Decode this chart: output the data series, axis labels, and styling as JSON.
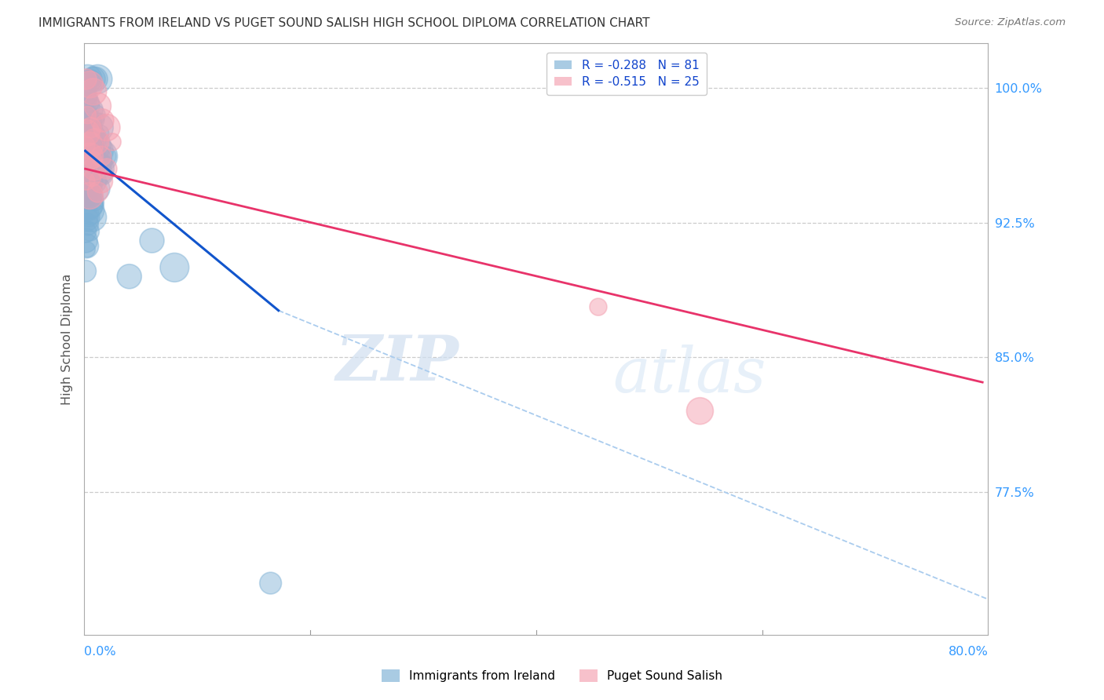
{
  "title": "IMMIGRANTS FROM IRELAND VS PUGET SOUND SALISH HIGH SCHOOL DIPLOMA CORRELATION CHART",
  "source": "Source: ZipAtlas.com",
  "ylabel": "High School Diploma",
  "ytick_values": [
    1.0,
    0.925,
    0.85,
    0.775
  ],
  "ytick_labels": [
    "100.0%",
    "92.5%",
    "85.0%",
    "77.5%"
  ],
  "xmin": 0.0,
  "xmax": 0.8,
  "ymin": 0.695,
  "ymax": 1.025,
  "ireland_color": "#7BAFD4",
  "salish_color": "#F4A0B0",
  "ireland_line_x": [
    0.001,
    0.172
  ],
  "ireland_line_y": [
    0.965,
    0.876
  ],
  "salish_line_x": [
    0.001,
    0.795
  ],
  "salish_line_y": [
    0.955,
    0.836
  ],
  "dashed_line_x": [
    0.172,
    0.8
  ],
  "dashed_line_y": [
    0.876,
    0.715
  ],
  "ireland_scatter_x": [
    0.003,
    0.006,
    0.008,
    0.01,
    0.012,
    0.002,
    0.004,
    0.005,
    0.007,
    0.009,
    0.011,
    0.013,
    0.015,
    0.001,
    0.003,
    0.005,
    0.007,
    0.009,
    0.011,
    0.013,
    0.015,
    0.018,
    0.002,
    0.004,
    0.006,
    0.008,
    0.01,
    0.013,
    0.016,
    0.001,
    0.003,
    0.005,
    0.007,
    0.009,
    0.012,
    0.001,
    0.003,
    0.005,
    0.008,
    0.01,
    0.001,
    0.003,
    0.005,
    0.007,
    0.001,
    0.003,
    0.005,
    0.001,
    0.003,
    0.002,
    0.004,
    0.001,
    0.002,
    0.003,
    0.001,
    0.002,
    0.001,
    0.001,
    0.001,
    0.02,
    0.04,
    0.06,
    0.08,
    0.001,
    0.003,
    0.006,
    0.009,
    0.012,
    0.001,
    0.002,
    0.004,
    0.001,
    0.002,
    0.001,
    0.165
  ],
  "ireland_scatter_y": [
    1.005,
    1.005,
    1.005,
    1.005,
    1.005,
    0.998,
    0.995,
    0.992,
    0.988,
    0.985,
    0.982,
    0.978,
    0.975,
    0.99,
    0.985,
    0.98,
    0.975,
    0.972,
    0.968,
    0.965,
    0.962,
    0.958,
    0.978,
    0.973,
    0.968,
    0.964,
    0.96,
    0.956,
    0.952,
    0.965,
    0.96,
    0.956,
    0.952,
    0.948,
    0.944,
    0.952,
    0.948,
    0.944,
    0.94,
    0.936,
    0.94,
    0.936,
    0.932,
    0.928,
    0.928,
    0.924,
    0.92,
    0.915,
    0.91,
    0.972,
    0.968,
    0.952,
    0.948,
    0.944,
    0.96,
    0.956,
    0.94,
    0.985,
    0.975,
    0.962,
    0.895,
    0.915,
    0.9,
    0.995,
    0.985,
    0.975,
    0.965,
    0.955,
    0.94,
    0.935,
    0.928,
    0.92,
    0.912,
    0.898,
    0.724
  ],
  "salish_scatter_x": [
    0.002,
    0.005,
    0.008,
    0.012,
    0.016,
    0.02,
    0.025,
    0.003,
    0.006,
    0.01,
    0.015,
    0.02,
    0.002,
    0.005,
    0.009,
    0.015,
    0.003,
    0.007,
    0.012,
    0.002,
    0.005,
    0.002,
    0.005,
    0.008,
    0.455,
    0.545
  ],
  "salish_scatter_y": [
    1.005,
    1.002,
    0.998,
    0.99,
    0.982,
    0.978,
    0.97,
    0.985,
    0.978,
    0.97,
    0.962,
    0.955,
    0.968,
    0.962,
    0.955,
    0.948,
    0.958,
    0.95,
    0.942,
    0.948,
    0.94,
    0.975,
    0.968,
    0.96,
    0.878,
    0.82
  ],
  "watermark_zip": "ZIP",
  "watermark_atlas": "atlas",
  "background_color": "#ffffff",
  "grid_color": "#cccccc",
  "title_color": "#333333",
  "tick_color": "#3399FF",
  "legend_text_color": "#1144CC"
}
